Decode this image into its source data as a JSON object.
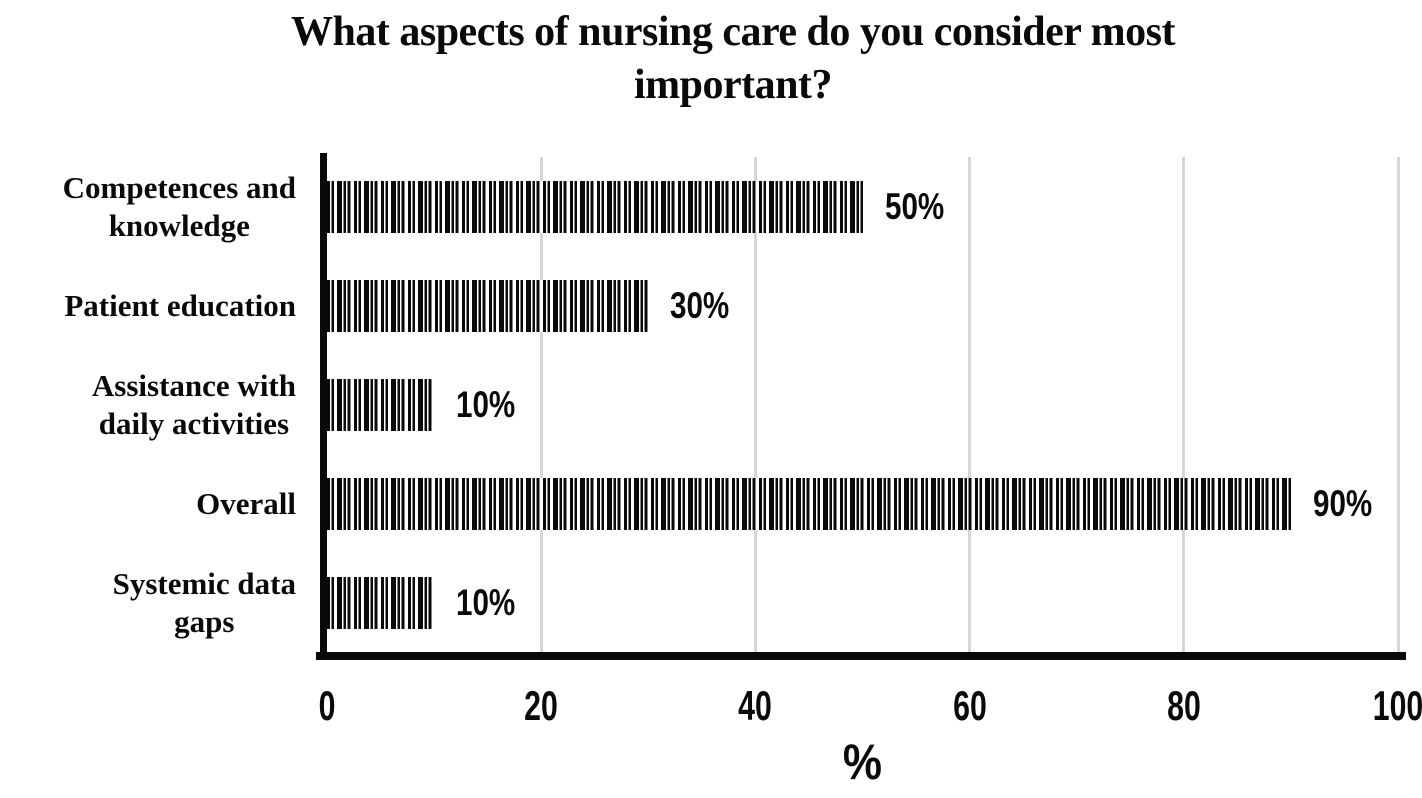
{
  "chart_data": {
    "type": "bar",
    "orientation": "horizontal",
    "title": "What aspects of nursing care do you consider most important?",
    "categories": [
      "Competences and knowledge",
      "Patient education",
      "Assistance with daily activities",
      "Overall",
      "Systemic data gaps"
    ],
    "category_label_lines": [
      [
        "Competences and",
        "knowledge"
      ],
      [
        "Patient education"
      ],
      [
        "Assistance with",
        "daily activities"
      ],
      [
        "Overall"
      ],
      [
        "Systemic data",
        "gaps"
      ]
    ],
    "values": [
      50,
      30,
      10,
      90,
      10
    ],
    "data_labels": [
      "50%",
      "30%",
      "10%",
      "90%",
      "10%"
    ],
    "xlabel": "%",
    "ylabel": "",
    "xlim": [
      0,
      100
    ],
    "xticks": [
      0,
      20,
      40,
      60,
      80,
      100
    ],
    "grid": "vertical-gridlines-at-ticks",
    "legend": "none",
    "bar_fill": "black-vertical-stripe-pattern",
    "colors": {
      "bar_stripe": "#0a0a0a",
      "bar_background": "#ffffff",
      "gridline": "#d6d6d6",
      "axis": "#0a0a0a",
      "text": "#0a0a0a",
      "background": "#ffffff"
    }
  }
}
